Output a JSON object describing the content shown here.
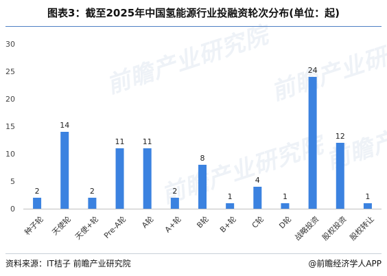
{
  "title": "图表3：截至2025年中国氢能源行业投融资轮次分布(单位：起)",
  "footer": {
    "source": "资料来源：IT桔子 前瞻产业研究院",
    "brand": "@前瞻经济学人APP"
  },
  "watermark": "前瞻产业研究院",
  "colors": {
    "bar": "#3b82e0",
    "rule": "#4d7fc4"
  },
  "chart_data": {
    "type": "bar",
    "categories": [
      "种子轮",
      "天使轮",
      "天使+轮",
      "Pre-A轮",
      "A轮",
      "A+轮",
      "B轮",
      "B+轮",
      "C轮",
      "D轮",
      "战略投资",
      "股权投资",
      "股权转让"
    ],
    "values": [
      2,
      14,
      2,
      11,
      11,
      2,
      8,
      1,
      4,
      1,
      24,
      12,
      1
    ],
    "data_labels": [
      "2",
      "14",
      "2",
      "11",
      "11",
      "2",
      "8",
      "1",
      "4",
      "1",
      "24",
      "12",
      "1"
    ],
    "ylim": [
      0,
      30
    ],
    "yticks": [
      0,
      5,
      10,
      15,
      20,
      25,
      30
    ],
    "ytick_labels": [
      "0",
      "5",
      "10",
      "15",
      "20",
      "25",
      "30"
    ],
    "grid": false,
    "legend": "none"
  }
}
